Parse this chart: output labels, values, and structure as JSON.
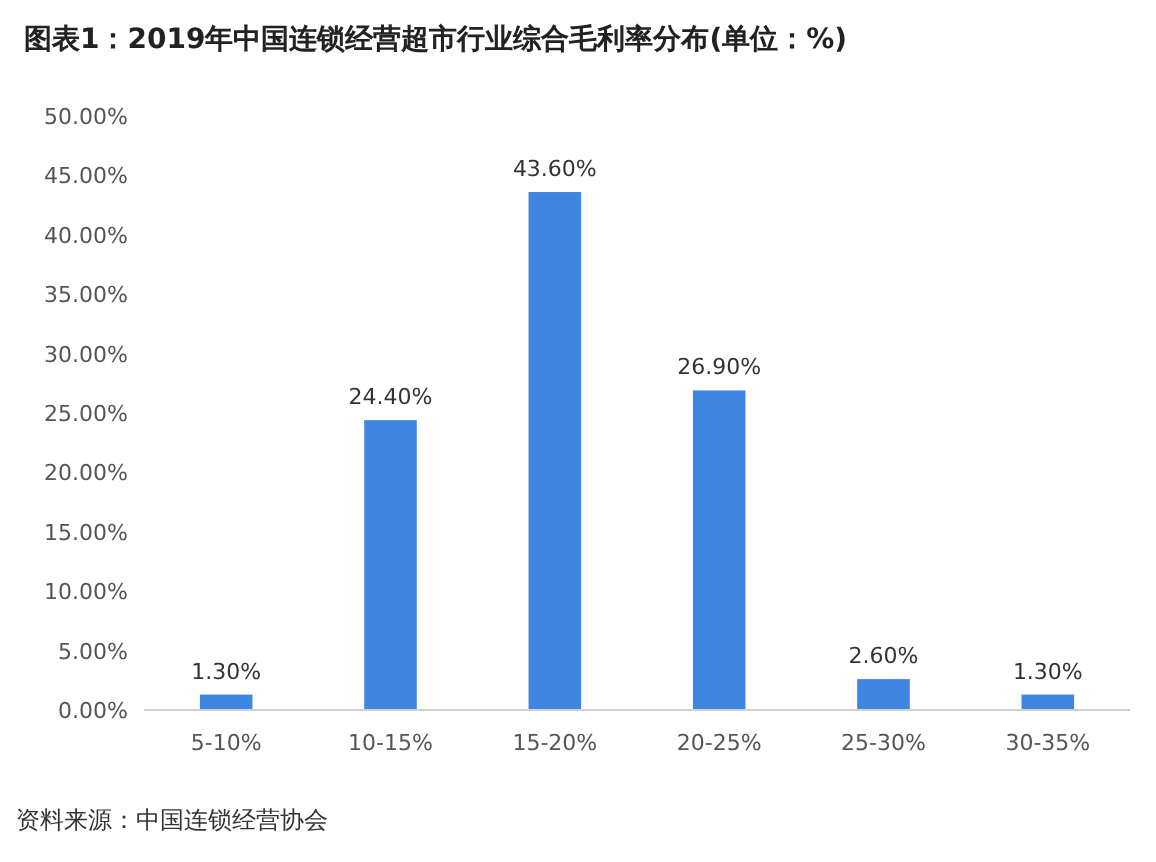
{
  "chart_data": {
    "type": "bar",
    "title": "图表1：2019年中国连锁经营超市行业综合毛利率分布(单位：%)",
    "categories": [
      "5-10%",
      "10-15%",
      "15-20%",
      "20-25%",
      "25-30%",
      "30-35%"
    ],
    "values": [
      1.3,
      24.4,
      43.6,
      26.9,
      2.6,
      1.3
    ],
    "value_labels": [
      "1.30%",
      "24.40%",
      "43.60%",
      "26.90%",
      "2.60%",
      "1.30%"
    ],
    "color": "#3f86e3",
    "ylim": [
      0,
      50
    ],
    "yticks": [
      {
        "value": 0,
        "label": "0.00%"
      },
      {
        "value": 5,
        "label": "5.00%"
      },
      {
        "value": 10,
        "label": "10.00%"
      },
      {
        "value": 15,
        "label": "15.00%"
      },
      {
        "value": 20,
        "label": "20.00%"
      },
      {
        "value": 25,
        "label": "25.00%"
      },
      {
        "value": 30,
        "label": "30.00%"
      },
      {
        "value": 35,
        "label": "35.00%"
      },
      {
        "value": 40,
        "label": "40.00%"
      },
      {
        "value": 45,
        "label": "45.00%"
      },
      {
        "value": 50,
        "label": "50.00%"
      }
    ],
    "grid": false,
    "annotations": [
      "资料来源：中国连锁经营协会"
    ]
  }
}
